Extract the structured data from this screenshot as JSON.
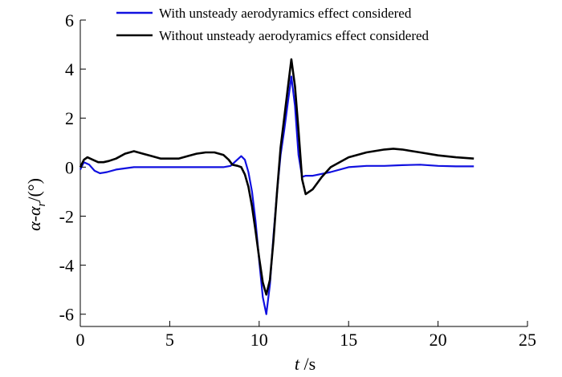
{
  "chart_data": {
    "type": "line",
    "title": "",
    "xlabel": {
      "symbol": "t",
      "unit": " /s"
    },
    "ylabel": {
      "symbol": "α-α",
      "subscript": "r",
      "unit": "/(°)"
    },
    "xlim": [
      0,
      25
    ],
    "ylim": [
      -6.5,
      6
    ],
    "xticks": [
      0,
      5,
      10,
      15,
      20,
      25
    ],
    "yticks": [
      -6,
      -4,
      -2,
      0,
      2,
      4,
      6
    ],
    "xtick_labels": [
      "0",
      "5",
      "10",
      "15",
      "20",
      "25"
    ],
    "ytick_labels": [
      "-6",
      "-4",
      "-2",
      "0",
      "2",
      "4",
      "6"
    ],
    "grid": false,
    "legend_position": "top",
    "series": [
      {
        "name": "With unsteady aerodyramics effect considered",
        "color": "#1010e0",
        "x": [
          0,
          0.2,
          0.5,
          0.8,
          1.1,
          1.5,
          2.0,
          2.5,
          3.0,
          4.0,
          5.0,
          6.0,
          7.0,
          8.0,
          8.4,
          8.7,
          9.0,
          9.2,
          9.4,
          9.6,
          9.8,
          10.0,
          10.2,
          10.4,
          10.6,
          10.8,
          11.0,
          11.2,
          11.4,
          11.6,
          11.8,
          12.0,
          12.2,
          12.4,
          12.6,
          13.0,
          14.0,
          15.0,
          16.0,
          17.0,
          18.0,
          19.0,
          20.0,
          21.0,
          22.0
        ],
        "y": [
          -0.1,
          0.2,
          0.1,
          -0.15,
          -0.25,
          -0.2,
          -0.1,
          -0.05,
          0.0,
          0.0,
          0.0,
          0.0,
          0.0,
          0.0,
          0.05,
          0.25,
          0.45,
          0.3,
          -0.2,
          -1.0,
          -2.2,
          -3.8,
          -5.3,
          -6.0,
          -4.8,
          -2.8,
          -1.0,
          0.5,
          1.5,
          2.6,
          3.7,
          2.5,
          0.5,
          -0.4,
          -0.35,
          -0.35,
          -0.2,
          0.0,
          0.05,
          0.05,
          0.08,
          0.1,
          0.05,
          0.03,
          0.03
        ]
      },
      {
        "name": "Without unsteady aerodyramics effect considered",
        "color": "#000000",
        "x": [
          0,
          0.2,
          0.4,
          0.7,
          1.0,
          1.3,
          1.6,
          2.0,
          2.5,
          3.0,
          3.5,
          4.0,
          4.5,
          5.0,
          5.5,
          6.0,
          6.5,
          7.0,
          7.5,
          8.0,
          8.3,
          8.5,
          8.8,
          9.0,
          9.2,
          9.4,
          9.6,
          9.8,
          10.0,
          10.2,
          10.4,
          10.6,
          10.8,
          11.0,
          11.2,
          11.4,
          11.6,
          11.8,
          12.0,
          12.2,
          12.4,
          12.6,
          13.0,
          13.5,
          14.0,
          15.0,
          16.0,
          17.0,
          17.5,
          18.0,
          19.0,
          20.0,
          21.0,
          22.0
        ],
        "y": [
          0.0,
          0.3,
          0.4,
          0.3,
          0.2,
          0.2,
          0.25,
          0.35,
          0.55,
          0.65,
          0.55,
          0.45,
          0.35,
          0.35,
          0.35,
          0.45,
          0.55,
          0.6,
          0.6,
          0.5,
          0.3,
          0.1,
          0.05,
          0.0,
          -0.3,
          -0.8,
          -1.6,
          -2.6,
          -3.7,
          -4.7,
          -5.2,
          -4.6,
          -3.0,
          -1.0,
          0.8,
          2.0,
          3.2,
          4.4,
          3.3,
          1.5,
          -0.5,
          -1.1,
          -0.9,
          -0.4,
          0.0,
          0.4,
          0.6,
          0.72,
          0.75,
          0.72,
          0.6,
          0.48,
          0.4,
          0.35
        ]
      }
    ]
  }
}
